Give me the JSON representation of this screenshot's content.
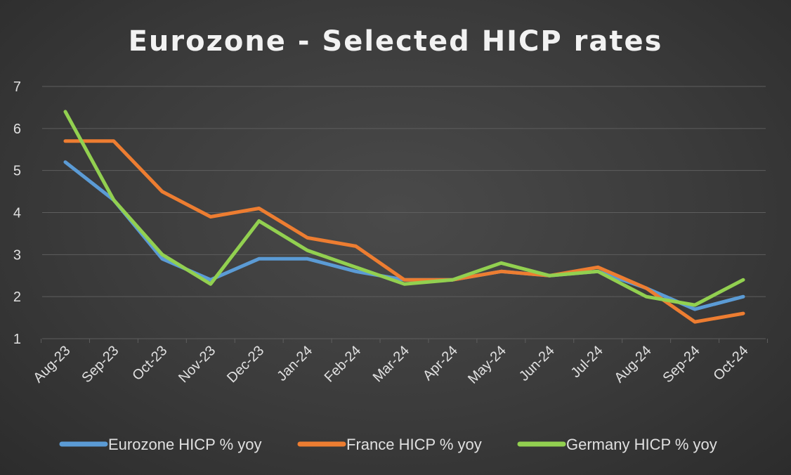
{
  "chart_data": {
    "type": "line",
    "title": "Eurozone - Selected HICP rates",
    "xlabel": "",
    "ylabel": "",
    "categories": [
      "Aug-23",
      "Sep-23",
      "Oct-23",
      "Nov-23",
      "Dec-23",
      "Jan-24",
      "Feb-24",
      "Mar-24",
      "Apr-24",
      "May-24",
      "Jun-24",
      "Jul-24",
      "Aug-24",
      "Sep-24",
      "Oct-24"
    ],
    "ylim": [
      1,
      7
    ],
    "yticks": [
      "1",
      "2",
      "3",
      "4",
      "5",
      "6",
      "7"
    ],
    "grid": "horizontal",
    "legend": "bottom",
    "series": [
      {
        "name": "Eurozone HICP % yoy",
        "color": "#5b9bd5",
        "values": [
          5.2,
          4.3,
          2.9,
          2.4,
          2.9,
          2.9,
          2.6,
          2.4,
          2.4,
          2.6,
          2.5,
          2.6,
          2.2,
          1.7,
          2.0
        ]
      },
      {
        "name": "France HICP % yoy",
        "color": "#ed7d31",
        "values": [
          5.7,
          5.7,
          4.5,
          3.9,
          4.1,
          3.4,
          3.2,
          2.4,
          2.4,
          2.6,
          2.5,
          2.7,
          2.2,
          1.4,
          1.6
        ]
      },
      {
        "name": "Germany HICP % yoy",
        "color": "#92d050",
        "values": [
          6.4,
          4.3,
          3.0,
          2.3,
          3.8,
          3.1,
          2.7,
          2.3,
          2.4,
          2.8,
          2.5,
          2.6,
          2.0,
          1.8,
          2.4
        ]
      }
    ]
  },
  "colors": {
    "gridline": "#5e5e5e",
    "text": "#e0e0e0",
    "title": "#f2f2f2"
  }
}
